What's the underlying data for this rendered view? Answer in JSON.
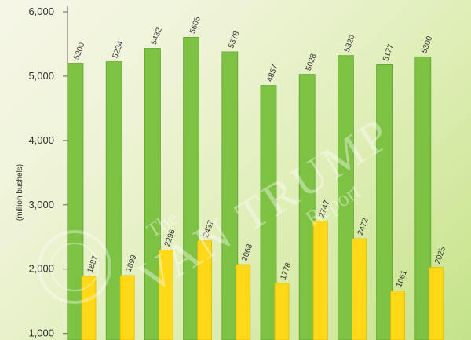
{
  "chart_data": {
    "type": "bar",
    "title": "",
    "ylabel": "(million bushels)",
    "xlabel": "",
    "ylim": [
      800,
      6000
    ],
    "yticks": [
      1000,
      2000,
      3000,
      4000,
      5000,
      6000
    ],
    "ytick_labels": [
      "1,000",
      "2,000",
      "3,000",
      "4,000",
      "5,000",
      "6,000"
    ],
    "grid": false,
    "legend": "none",
    "categories": [
      "",
      "",
      "",
      "",
      "",
      "",
      "",
      "",
      "",
      ""
    ],
    "series": [
      {
        "color": "#7dc243",
        "values": [
          5200,
          5224,
          5432,
          5605,
          5378,
          4857,
          5028,
          5320,
          5177,
          5300
        ]
      },
      {
        "color": "#ffd817",
        "values": [
          1887,
          1899,
          2296,
          2437,
          2068,
          1778,
          2747,
          2472,
          1661,
          2025
        ]
      }
    ]
  },
  "watermark": {
    "line1": "The",
    "line2": "VAN TRUMP",
    "line3": "Report"
  }
}
